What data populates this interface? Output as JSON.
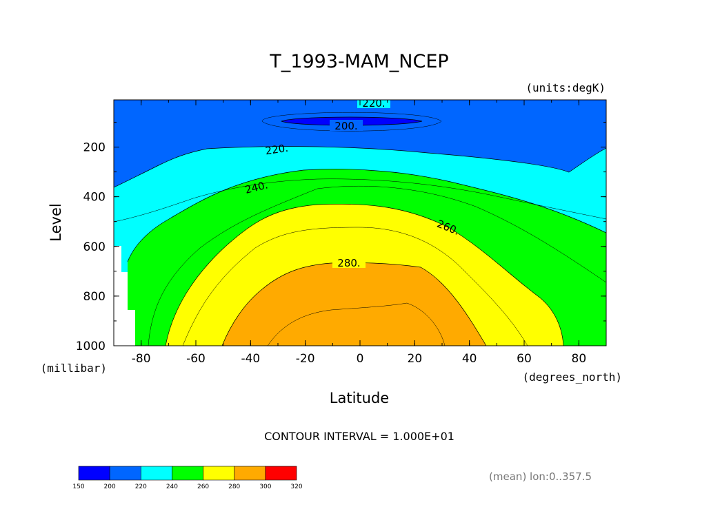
{
  "chart_data": {
    "type": "heatmap",
    "title": "T_1993-MAM_NCEP",
    "units": "(units:degK)",
    "xlabel": "Latitude",
    "xunits": "(degrees_north)",
    "ylabel": "Level",
    "yunits": "(millibar)",
    "x_ticks": [
      "-80",
      "-60",
      "-40",
      "-20",
      "0",
      "20",
      "40",
      "60",
      "80"
    ],
    "y_ticks": [
      "200",
      "400",
      "600",
      "800",
      "1000"
    ],
    "xlim": [
      -90,
      90
    ],
    "ylim": [
      1000,
      10
    ],
    "contour_interval_text": "CONTOUR INTERVAL = 1.000E+01",
    "mean_text": "(mean) lon:0..357.5",
    "contour_labels": [
      "220.",
      "200.",
      "220.",
      "240.",
      "260.",
      "280."
    ],
    "colorbar": {
      "ticks": [
        "150",
        "200",
        "220",
        "240",
        "260",
        "280",
        "300",
        "320"
      ],
      "colors": [
        "#0000ff",
        "#0066ff",
        "#00ffff",
        "#00ff00",
        "#ffff00",
        "#ffaa00",
        "#ff0000"
      ]
    }
  }
}
